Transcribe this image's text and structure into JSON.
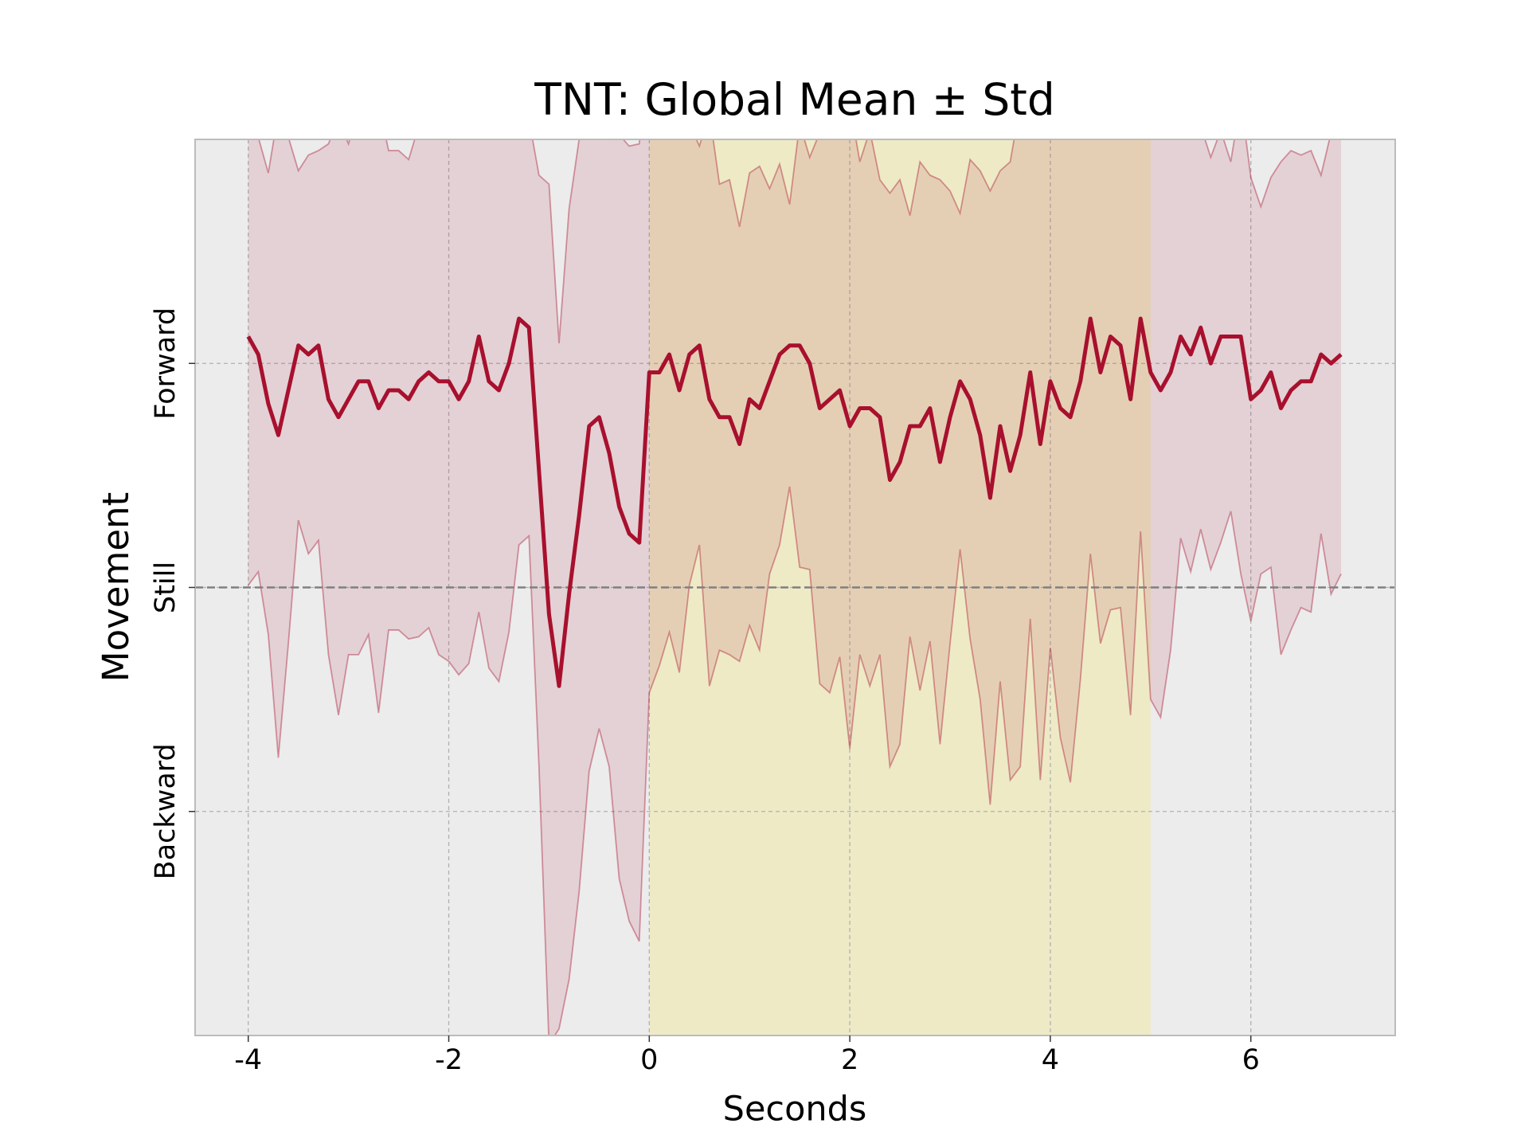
{
  "chart_data": {
    "type": "line",
    "title": "TNT: Global Mean ± Std",
    "xlabel": "Seconds",
    "ylabel": "Movement",
    "x": [
      -4,
      -3.9,
      -3.8,
      -3.7,
      -3.6,
      -3.5,
      -3.4,
      -3.3,
      -3.2,
      -3.1,
      -3,
      -2.9,
      -2.8,
      -2.7,
      -2.6,
      -2.5,
      -2.4,
      -2.3,
      -2.2,
      -2.1,
      -2,
      -1.9,
      -1.8,
      -1.7,
      -1.6,
      -1.5,
      -1.4,
      -1.3,
      -1.2,
      -1.1,
      -1,
      -0.9,
      -0.8,
      -0.7,
      -0.6,
      -0.5,
      -0.4,
      -0.3,
      -0.2,
      -0.1,
      0,
      0.1,
      0.2,
      0.3,
      0.4,
      0.5,
      0.6,
      0.7,
      0.8,
      0.9,
      1,
      1.1,
      1.2,
      1.3,
      1.4,
      1.5,
      1.6,
      1.7,
      1.8,
      1.9,
      2,
      2.1,
      2.2,
      2.3,
      2.4,
      2.5,
      2.6,
      2.7,
      2.8,
      2.9,
      3,
      3.1,
      3.2,
      3.3,
      3.4,
      3.5,
      3.6,
      3.7,
      3.8,
      3.9,
      4,
      4.1,
      4.2,
      4.3,
      4.4,
      4.5,
      4.6,
      4.7,
      4.8,
      4.9,
      5,
      5.1,
      5.2,
      5.3,
      5.4,
      5.5,
      5.6,
      5.7,
      5.8,
      5.9,
      6,
      6.1,
      6.2,
      6.3,
      6.4,
      6.5,
      6.6,
      6.7,
      6.8,
      6.9
    ],
    "series": [
      {
        "color": "#a8102e",
        "band_color": "#a8102e",
        "values": [
          1.12,
          1.04,
          0.82,
          0.68,
          0.88,
          1.08,
          1.04,
          1.08,
          0.84,
          0.76,
          0.84,
          0.92,
          0.92,
          0.8,
          0.88,
          0.88,
          0.84,
          0.92,
          0.96,
          0.92,
          0.92,
          0.84,
          0.92,
          1.12,
          0.92,
          0.88,
          1.0,
          1.2,
          1.16,
          0.52,
          -0.12,
          -0.44,
          -0.03,
          0.32,
          0.72,
          0.76,
          0.6,
          0.36,
          0.24,
          0.2,
          0.96,
          0.96,
          1.04,
          0.88,
          1.04,
          1.08,
          0.84,
          0.76,
          0.76,
          0.64,
          0.84,
          0.8,
          0.92,
          1.04,
          1.08,
          1.08,
          1.0,
          0.8,
          0.84,
          0.88,
          0.72,
          0.8,
          0.8,
          0.76,
          0.48,
          0.56,
          0.72,
          0.72,
          0.8,
          0.56,
          0.76,
          0.92,
          0.84,
          0.68,
          0.4,
          0.72,
          0.52,
          0.68,
          0.96,
          0.64,
          0.92,
          0.8,
          0.76,
          0.92,
          1.2,
          0.96,
          1.12,
          1.08,
          0.84,
          1.2,
          0.96,
          0.88,
          0.96,
          1.12,
          1.04,
          1.16,
          1.0,
          1.12,
          1.12,
          1.12,
          0.84,
          0.88,
          0.96,
          0.8,
          0.88,
          0.92,
          0.92,
          1.04,
          1.0,
          1.04
        ],
        "std": [
          1.11,
          0.97,
          1.03,
          1.44,
          1.13,
          0.78,
          0.89,
          0.87,
          1.14,
          1.33,
          1.14,
          1.22,
          1.13,
          1.36,
          1.07,
          1.07,
          1.07,
          1.14,
          1.14,
          1.22,
          1.25,
          1.23,
          1.26,
          1.23,
          1.28,
          1.3,
          1.2,
          1.01,
          0.93,
          1.32,
          1.92,
          1.53,
          1.72,
          1.68,
          1.54,
          1.39,
          1.4,
          1.66,
          1.73,
          1.78,
          1.43,
          1.31,
          1.24,
          1.26,
          1.03,
          0.89,
          1.28,
          1.04,
          1.06,
          0.97,
          1.01,
          1.08,
          0.86,
          0.85,
          0.63,
          0.99,
          0.92,
          1.23,
          1.31,
          1.19,
          1.44,
          1.1,
          1.24,
          1.06,
          1.28,
          1.26,
          0.94,
          1.18,
          1.04,
          1.26,
          1.01,
          0.75,
          1.07,
          1.18,
          1.37,
          1.14,
          1.38,
          1.48,
          1.1,
          1.5,
          1.19,
          1.47,
          1.63,
          1.33,
          1.05,
          1.21,
          1.22,
          1.17,
          1.41,
          0.95,
          1.46,
          1.46,
          1.24,
          0.9,
          0.97,
          0.9,
          0.92,
          0.92,
          0.78,
          1.06,
          0.99,
          0.82,
          0.87,
          1.1,
          1.07,
          1.01,
          1.03,
          0.8,
          1.03,
          0.98
        ]
      }
    ],
    "span": {
      "x": [
        0,
        5
      ],
      "color": "#eeeac6"
    },
    "hline": 0,
    "xlim": [
      -4.53,
      7.44
    ],
    "xticks": [
      -4,
      -2,
      0,
      2,
      4,
      6
    ],
    "ylim": [
      -2,
      2
    ],
    "yticks": [
      {
        "value": -1,
        "label": "Backward"
      },
      {
        "value": 0,
        "label": "Still"
      },
      {
        "value": 1,
        "label": "Forward"
      }
    ],
    "grid": true
  }
}
